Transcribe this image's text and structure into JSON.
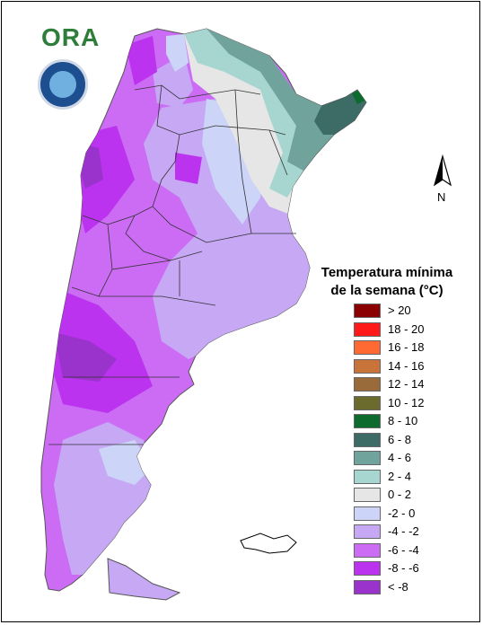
{
  "header": {
    "logo_text": "ORA",
    "seal_label": "seal"
  },
  "compass": {
    "label": "N"
  },
  "legend": {
    "title_line1": "Temperatura mínima",
    "title_line2": "de la semana (°C)",
    "classes": [
      {
        "label": "> 20",
        "color": "#8b0000"
      },
      {
        "label": "18 - 20",
        "color": "#ff1a1a"
      },
      {
        "label": "16 - 18",
        "color": "#ff6a33"
      },
      {
        "label": "14 - 16",
        "color": "#c8733a"
      },
      {
        "label": "12 - 14",
        "color": "#9a6b3a"
      },
      {
        "label": "10 - 12",
        "color": "#6b6b2e"
      },
      {
        "label": "8 - 10",
        "color": "#0e6b2e"
      },
      {
        "label": "6 - 8",
        "color": "#3d6b66"
      },
      {
        "label": "4 - 6",
        "color": "#6fa39c"
      },
      {
        "label": "2 - 4",
        "color": "#a7d6d0"
      },
      {
        "label": "0 - 2",
        "color": "#e6e6e6"
      },
      {
        "label": "-2 - 0",
        "color": "#ccd4f7"
      },
      {
        "label": "-4 - -2",
        "color": "#c7a8f5"
      },
      {
        "label": "-6 - -4",
        "color": "#cc6cf5"
      },
      {
        "label": "-8 - -6",
        "color": "#bb33ee"
      },
      {
        "label": "< -8",
        "color": "#9933cc"
      }
    ]
  }
}
